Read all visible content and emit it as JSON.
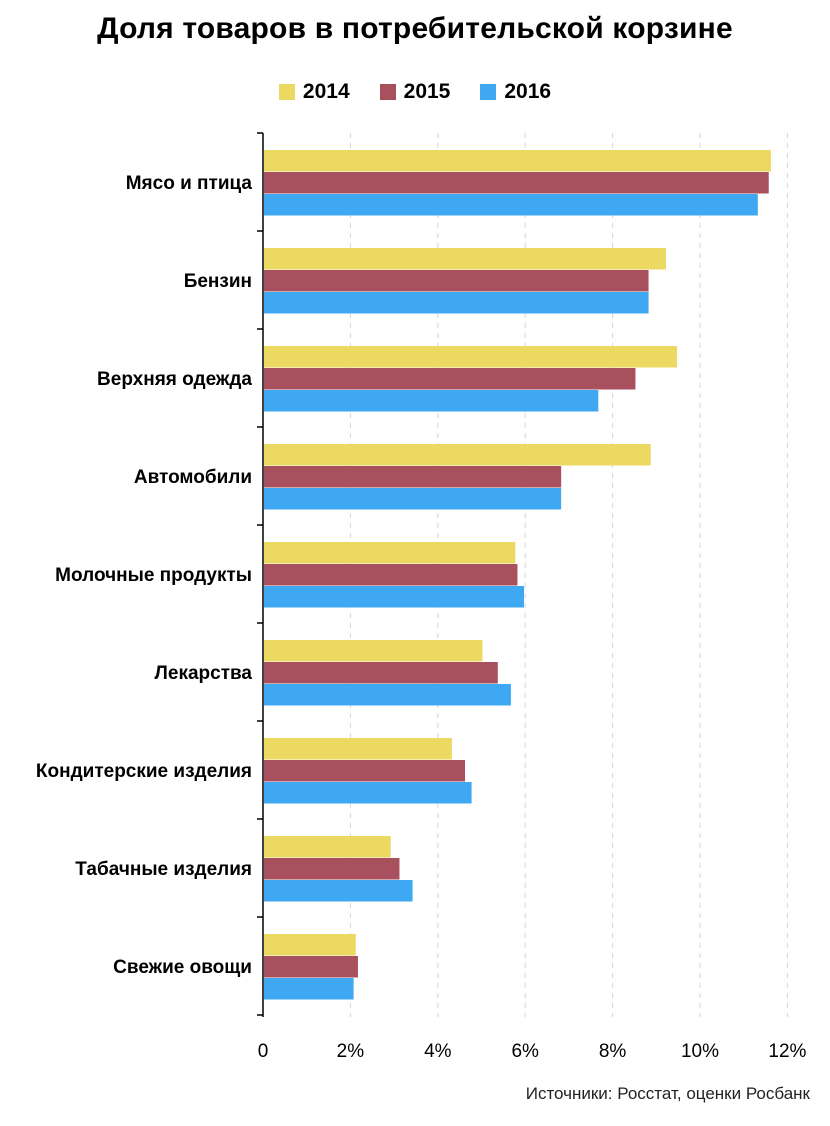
{
  "chart_data": {
    "type": "bar",
    "orientation": "horizontal",
    "title": "Доля товаров в потребительской корзине",
    "categories": [
      "Мясо и птица",
      "Бензин",
      "Верхняя одежда",
      "Автомобили",
      "Молочные продукты",
      "Лекарства",
      "Кондитерские изделия",
      "Табачные изделия",
      "Свежие овощи"
    ],
    "series": [
      {
        "name": "2014",
        "color": "#ecd961",
        "values": [
          11.6,
          9.2,
          9.45,
          8.85,
          5.75,
          5.0,
          4.3,
          2.9,
          2.1
        ]
      },
      {
        "name": "2015",
        "color": "#a9505f",
        "values": [
          11.55,
          8.8,
          8.5,
          6.8,
          5.8,
          5.35,
          4.6,
          3.1,
          2.15
        ]
      },
      {
        "name": "2016",
        "color": "#3fa8f2",
        "values": [
          11.3,
          8.8,
          7.65,
          6.8,
          5.95,
          5.65,
          4.75,
          3.4,
          2.05
        ]
      }
    ],
    "xticks": [
      "0",
      "2%",
      "4%",
      "6%",
      "8%",
      "10%",
      "12%"
    ],
    "xlim": [
      0,
      12
    ],
    "legend_position": "top",
    "grid": "vertical dashed"
  },
  "source": "Источники: Росстат, оценки Росбанк"
}
